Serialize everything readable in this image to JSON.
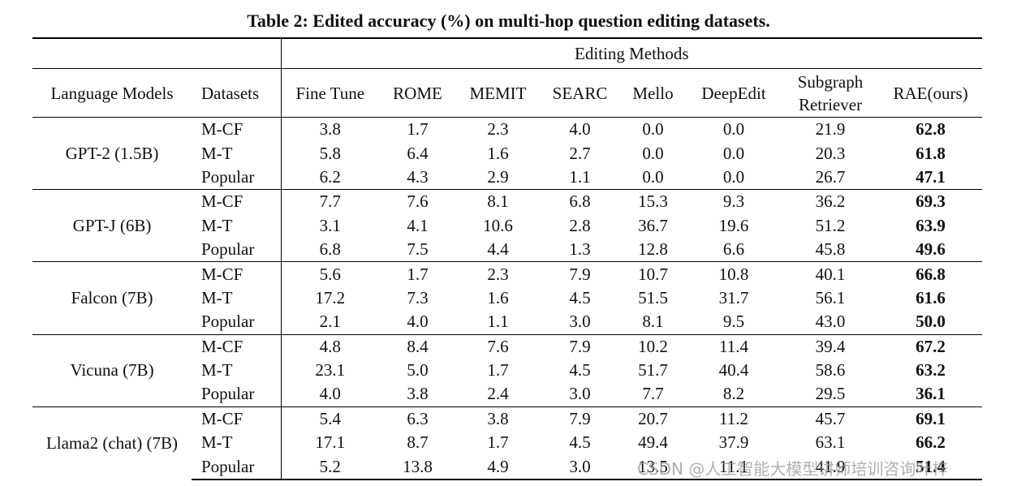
{
  "title": "Table 2: Edited accuracy (%) on multi-hop question editing datasets.",
  "header": {
    "group": "Editing Methods",
    "columns": [
      "Language Models",
      "Datasets",
      "Fine Tune",
      "ROME",
      "MEMIT",
      "SEARC",
      "Mello",
      "DeepEdit",
      "Subgraph Retriever",
      "RAE(ours)"
    ]
  },
  "groups": [
    {
      "model": "GPT-2 (1.5B)",
      "rows": [
        {
          "dataset": "M-CF",
          "values": [
            "3.8",
            "1.7",
            "2.3",
            "4.0",
            "0.0",
            "0.0",
            "21.9",
            "62.8"
          ]
        },
        {
          "dataset": "M-T",
          "values": [
            "5.8",
            "6.4",
            "1.6",
            "2.7",
            "0.0",
            "0.0",
            "20.3",
            "61.8"
          ]
        },
        {
          "dataset": "Popular",
          "values": [
            "6.2",
            "4.3",
            "2.9",
            "1.1",
            "0.0",
            "0.0",
            "26.7",
            "47.1"
          ]
        }
      ]
    },
    {
      "model": "GPT-J (6B)",
      "rows": [
        {
          "dataset": "M-CF",
          "values": [
            "7.7",
            "7.6",
            "8.1",
            "6.8",
            "15.3",
            "9.3",
            "36.2",
            "69.3"
          ]
        },
        {
          "dataset": "M-T",
          "values": [
            "3.1",
            "4.1",
            "10.6",
            "2.8",
            "36.7",
            "19.6",
            "51.2",
            "63.9"
          ]
        },
        {
          "dataset": "Popular",
          "values": [
            "6.8",
            "7.5",
            "4.4",
            "1.3",
            "12.8",
            "6.6",
            "45.8",
            "49.6"
          ]
        }
      ]
    },
    {
      "model": "Falcon (7B)",
      "rows": [
        {
          "dataset": "M-CF",
          "values": [
            "5.6",
            "1.7",
            "2.3",
            "7.9",
            "10.7",
            "10.8",
            "40.1",
            "66.8"
          ]
        },
        {
          "dataset": "M-T",
          "values": [
            "17.2",
            "7.3",
            "1.6",
            "4.5",
            "51.5",
            "31.7",
            "56.1",
            "61.6"
          ]
        },
        {
          "dataset": "Popular",
          "values": [
            "2.1",
            "4.0",
            "1.1",
            "3.0",
            "8.1",
            "9.5",
            "43.0",
            "50.0"
          ]
        }
      ]
    },
    {
      "model": "Vicuna (7B)",
      "rows": [
        {
          "dataset": "M-CF",
          "values": [
            "4.8",
            "8.4",
            "7.6",
            "7.9",
            "10.2",
            "11.4",
            "39.4",
            "67.2"
          ]
        },
        {
          "dataset": "M-T",
          "values": [
            "23.1",
            "5.0",
            "1.7",
            "4.5",
            "51.7",
            "40.4",
            "58.6",
            "63.2"
          ]
        },
        {
          "dataset": "Popular",
          "values": [
            "4.0",
            "3.8",
            "2.4",
            "3.0",
            "7.7",
            "8.2",
            "29.5",
            "36.1"
          ]
        }
      ]
    },
    {
      "model": "Llama2 (chat) (7B)",
      "rows": [
        {
          "dataset": "M-CF",
          "values": [
            "5.4",
            "6.3",
            "3.8",
            "7.9",
            "20.7",
            "11.2",
            "45.7",
            "69.1"
          ]
        },
        {
          "dataset": "M-T",
          "values": [
            "17.1",
            "8.7",
            "1.7",
            "4.5",
            "49.4",
            "37.9",
            "63.1",
            "66.2"
          ]
        },
        {
          "dataset": "Popular",
          "values": [
            "5.2",
            "13.8",
            "4.9",
            "3.0",
            "13.5",
            "11.1",
            "41.9",
            "51.4"
          ]
        }
      ]
    }
  ],
  "watermark": "CSDN @人工智能大模型讲师培训咨询叶梓"
}
